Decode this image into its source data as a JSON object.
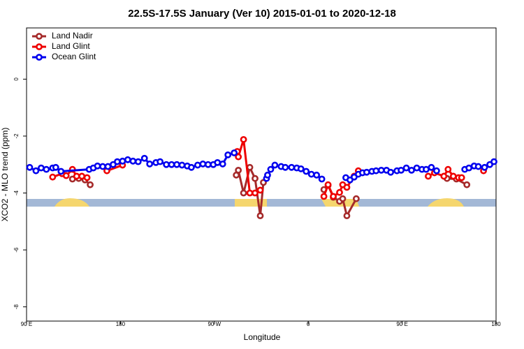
{
  "chart_data": {
    "type": "line",
    "title": "22.5S-17.5S January (Ver 10)   2015-01-01 to 2020-12-18",
    "xlabel": "Longitude",
    "ylabel": "XCO2 - MLO trend (ppm)",
    "xlim": [
      90,
      540
    ],
    "ylim": [
      -8.5,
      1.8
    ],
    "xticks": [
      {
        "value": 90,
        "label": "90 E"
      },
      {
        "value": 180,
        "label": "180"
      },
      {
        "value": 270,
        "label": "90 W"
      },
      {
        "value": 360,
        "label": "0"
      },
      {
        "value": 450,
        "label": "90 E"
      },
      {
        "value": 540,
        "label": "180"
      }
    ],
    "yticks": [
      0,
      -2,
      -4,
      -6,
      -8
    ],
    "legend": "top-left",
    "series": [
      {
        "name": "Land Nadir",
        "color": "#a52a2a",
        "x": [
          134,
          140,
          146,
          151,
          null,
          291,
          293,
          298,
          304,
          309,
          314,
          317,
          null,
          375,
          379,
          384,
          390,
          393,
          397,
          406,
          null,
          493,
          502,
          512
        ],
        "values": [
          -3.51,
          -3.49,
          -3.54,
          -3.71,
          null,
          -3.37,
          -3.2,
          -4.0,
          -3.1,
          -3.49,
          -4.8,
          -3.63,
          null,
          -3.88,
          -3.73,
          -4.15,
          -4.29,
          -4.2,
          -4.8,
          -4.2,
          null,
          -3.49,
          -3.51,
          -3.71
        ]
      },
      {
        "name": "Land Glint",
        "color": "#ee0000",
        "x": [
          115,
          124,
          128,
          134,
          138,
          143,
          148,
          null,
          167,
          182,
          null,
          292,
          293,
          298,
          304,
          309,
          314,
          null,
          375,
          379,
          384,
          390,
          393,
          397,
          404,
          408,
          null,
          475,
          481,
          490,
          494,
          499,
          504,
          507,
          null,
          528
        ],
        "values": [
          -3.44,
          -3.32,
          -3.39,
          -3.17,
          -3.41,
          -3.41,
          -3.46,
          null,
          -3.22,
          -3.02,
          null,
          -2.54,
          -2.73,
          -2.12,
          -4.0,
          -4.0,
          -3.9,
          null,
          -4.12,
          -3.71,
          -4.12,
          -3.98,
          -3.71,
          -3.8,
          -3.41,
          -3.22,
          null,
          -3.41,
          -3.29,
          -3.41,
          -3.17,
          -3.41,
          -3.46,
          -3.46,
          null,
          -3.22
        ]
      },
      {
        "name": "Ocean Glint",
        "color": "#0000ee",
        "x": [
          93,
          99,
          104,
          109,
          115,
          118,
          123,
          150,
          154,
          158,
          163,
          168,
          173,
          177,
          182,
          187,
          192,
          197,
          203,
          208,
          214,
          218,
          224,
          229,
          234,
          239,
          244,
          248,
          254,
          259,
          264,
          269,
          273,
          278,
          283,
          289,
          null,
          320,
          321,
          324,
          328,
          334,
          338,
          344,
          349,
          353,
          358,
          363,
          368,
          373,
          null,
          396,
          400,
          404,
          408,
          412,
          416,
          421,
          425,
          430,
          435,
          439,
          445,
          449,
          454,
          459,
          464,
          469,
          473,
          478,
          483,
          null,
          510,
          514,
          519,
          523,
          529,
          534,
          538
        ],
        "values": [
          -3.1,
          -3.22,
          -3.12,
          -3.17,
          -3.12,
          -3.1,
          -3.24,
          -3.17,
          -3.12,
          -3.05,
          -3.07,
          -3.07,
          -3.0,
          -2.9,
          -2.88,
          -2.83,
          -2.88,
          -2.9,
          -2.78,
          -2.98,
          -2.93,
          -2.9,
          -3.0,
          -3.0,
          -3.0,
          -3.02,
          -3.05,
          -3.1,
          -3.02,
          -2.98,
          -3.0,
          -3.0,
          -2.93,
          -2.98,
          -2.66,
          -2.59,
          null,
          -3.49,
          -3.37,
          -3.17,
          -3.02,
          -3.07,
          -3.1,
          -3.1,
          -3.12,
          -3.15,
          -3.24,
          -3.34,
          -3.37,
          -3.51,
          null,
          -3.46,
          -3.54,
          -3.44,
          -3.34,
          -3.29,
          -3.27,
          -3.24,
          -3.22,
          -3.2,
          -3.2,
          -3.27,
          -3.22,
          -3.2,
          -3.12,
          -3.2,
          -3.12,
          -3.17,
          -3.17,
          -3.1,
          -3.22,
          null,
          -3.17,
          -3.12,
          -3.05,
          -3.07,
          -3.1,
          -3.0,
          -2.9
        ]
      }
    ]
  }
}
